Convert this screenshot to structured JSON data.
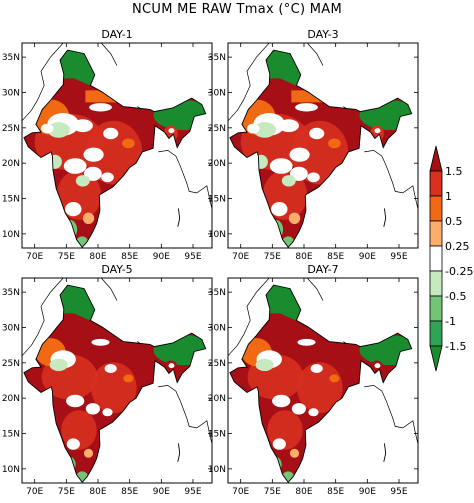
{
  "figure": {
    "title": "NCUM ME RAW Tmax (°C) MAM"
  },
  "panels": [
    {
      "title": "DAY-1"
    },
    {
      "title": "DAY-3"
    },
    {
      "title": "DAY-5"
    },
    {
      "title": "DAY-7"
    }
  ],
  "axes": {
    "lat_labels": [
      "35N",
      "30N",
      "25N",
      "20N",
      "15N",
      "10N"
    ],
    "lon_labels": [
      "70E",
      "75E",
      "80E",
      "85E",
      "90E",
      "95E"
    ]
  },
  "colorbar": {
    "labels": [
      "1.5",
      "1",
      "0.5",
      "0.25",
      "-0.25",
      "-0.5",
      "-1",
      "-1.5"
    ],
    "colors": [
      "#a50f15",
      "#d7301f",
      "#f16913",
      "#fdae6b",
      "#ffffff",
      "#c7e9c0",
      "#74c476",
      "#31a354",
      "#1a8b2e"
    ]
  },
  "chart_data": {
    "type": "heatmap",
    "title": "NCUM ME RAW Tmax (°C) MAM",
    "panels": [
      "DAY-1",
      "DAY-3",
      "DAY-5",
      "DAY-7"
    ],
    "xlim": [
      68,
      98
    ],
    "ylim": [
      8,
      37
    ],
    "x_ticks": [
      "70E",
      "75E",
      "80E",
      "85E",
      "90E",
      "95E"
    ],
    "y_ticks": [
      "35N",
      "30N",
      "25N",
      "20N",
      "15N",
      "10N"
    ],
    "legend_levels": [
      -1.5,
      -1,
      -0.5,
      -0.25,
      0.25,
      0.5,
      1,
      1.5
    ],
    "legend_placement": "right"
  }
}
